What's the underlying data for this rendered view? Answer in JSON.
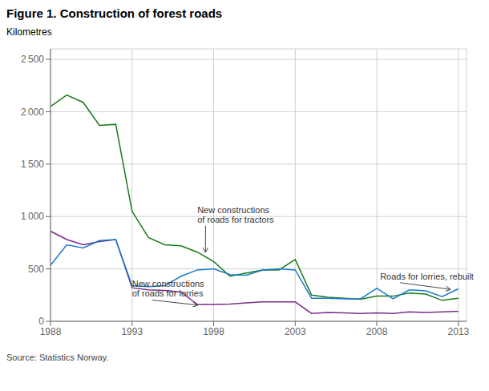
{
  "chart_data": {
    "type": "line",
    "title": "Figure 1. Construction of forest roads",
    "ylabel": "Kilometres",
    "source": "Source: Statistics Norway.",
    "x": [
      1988,
      1989,
      1990,
      1991,
      1992,
      1993,
      1994,
      1995,
      1996,
      1997,
      1998,
      1999,
      2000,
      2001,
      2002,
      2003,
      2004,
      2005,
      2006,
      2007,
      2008,
      2009,
      2010,
      2011,
      2012,
      2013
    ],
    "series": [
      {
        "color": "#1a7a1a",
        "values": [
          2050,
          2160,
          2090,
          1870,
          1880,
          1050,
          800,
          730,
          720,
          660,
          570,
          430,
          460,
          490,
          490,
          590,
          250,
          230,
          220,
          210,
          240,
          240,
          270,
          260,
          200,
          220
        ]
      },
      {
        "color": "#7B2D8B",
        "values": [
          860,
          780,
          730,
          760,
          780,
          320,
          300,
          295,
          280,
          160,
          160,
          165,
          175,
          185,
          185,
          185,
          75,
          85,
          80,
          75,
          80,
          75,
          90,
          85,
          90,
          95
        ]
      },
      {
        "color": "#1a7acd",
        "values": [
          535,
          730,
          700,
          770,
          780,
          340,
          330,
          340,
          430,
          490,
          500,
          445,
          440,
          490,
          500,
          490,
          220,
          220,
          215,
          215,
          315,
          215,
          300,
          290,
          235,
          310
        ]
      }
    ],
    "xlim": [
      1988,
      2013.5
    ],
    "xticks": [
      1988,
      1993,
      1998,
      2003,
      2008,
      2013
    ],
    "ylim": [
      0,
      2600
    ],
    "yticks": [
      0,
      500,
      {
        "value": 1000,
        "label": "1 000"
      },
      {
        "value": 1500,
        "label": "1 500"
      },
      {
        "value": 2000,
        "label": "2 000"
      },
      {
        "value": 2500,
        "label": "2 500"
      }
    ],
    "grid": true,
    "annotations": [
      {
        "text": "New constructions\nof roads for tractors",
        "x": 1997.5,
        "y": 660,
        "text_x": 1997,
        "text_y": 1020
      },
      {
        "text": "New constructions\nof roads for lorries",
        "x": 1997,
        "y": 155,
        "text_x": 1993,
        "text_y": 310
      },
      {
        "text": "Roads for lorries, rebuilt",
        "x": 2012.5,
        "y": 305,
        "text_x": 2008.2,
        "text_y": 430
      }
    ]
  }
}
